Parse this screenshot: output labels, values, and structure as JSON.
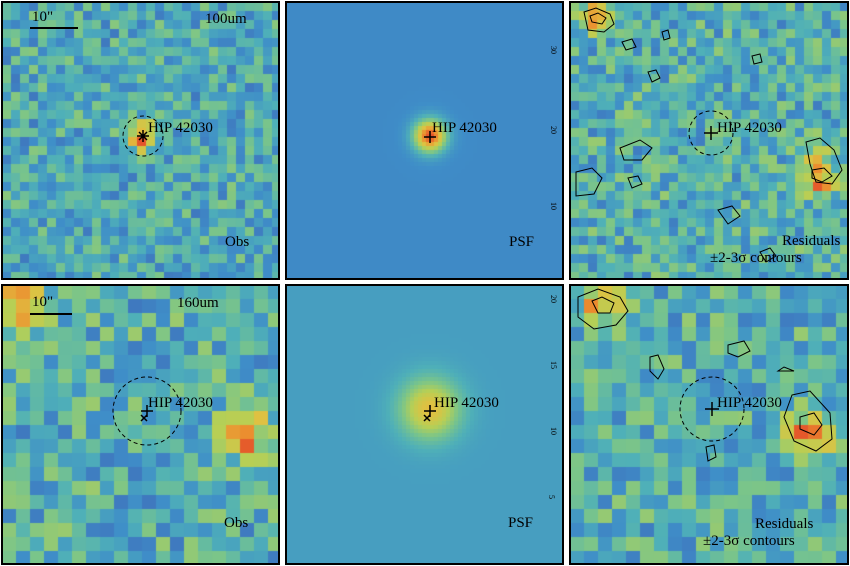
{
  "panels": [
    {
      "id": "p100obs",
      "kind": "obs",
      "band": "100um",
      "scale": "10\"",
      "target": "HIP 42030",
      "label": "Obs"
    },
    {
      "id": "p100psf",
      "kind": "psf",
      "target": "HIP 42030",
      "label": "PSF",
      "ticks": [
        "30",
        "20",
        "10"
      ]
    },
    {
      "id": "p100res",
      "kind": "res",
      "target": "HIP 42030",
      "label1": "Residuals",
      "label2": "±2-3σ contours"
    },
    {
      "id": "p160obs",
      "kind": "obs",
      "band": "160um",
      "scale": "10\"",
      "target": "HIP 42030",
      "label": "Obs"
    },
    {
      "id": "p160psf",
      "kind": "psf",
      "target": "HIP 42030",
      "label": "PSF",
      "ticks": [
        "20",
        "15",
        "10",
        "5"
      ]
    },
    {
      "id": "p160res",
      "kind": "res",
      "target": "HIP 42030",
      "label1": "Residuals",
      "label2": "±2-3σ contours"
    }
  ],
  "colormap": [
    "#3a2b8c",
    "#3e62b5",
    "#3f8ec8",
    "#4fb0b8",
    "#7bc589",
    "#b7cf55",
    "#e0c141",
    "#ec8a2e",
    "#e1412a"
  ]
}
